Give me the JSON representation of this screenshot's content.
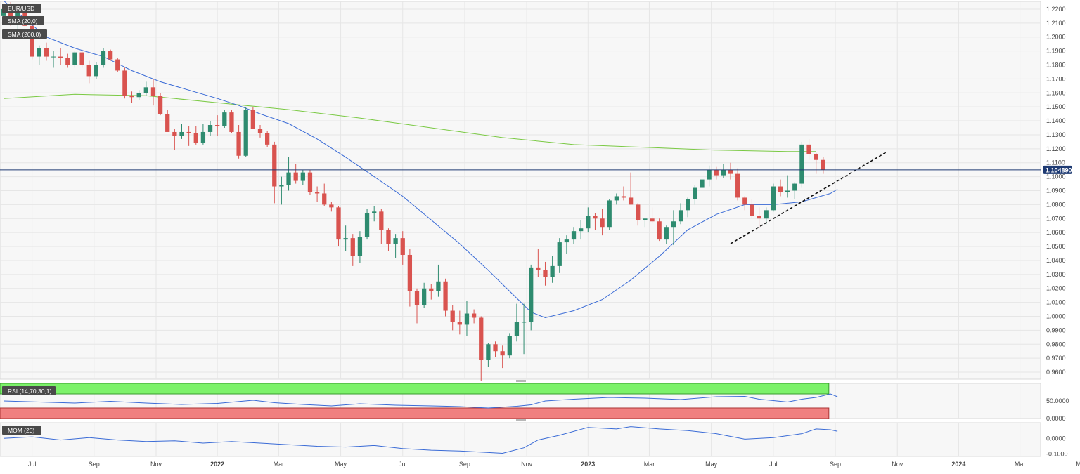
{
  "chart_data": {
    "type": "candlestick",
    "symbol": "EUR/USD",
    "indicators": {
      "sma_fast_label": "SMA (20,0)",
      "sma_slow_label": "SMA (200,0)",
      "rsi_label": "RSI (14,70,30,1)",
      "mom_label": "MOM (20)"
    },
    "last_price_label": "1.104890",
    "last_price": 1.10489,
    "main_ylim": [
      0.955,
      1.2255
    ],
    "y_ticks": [
      "1.2200",
      "1.2100",
      "1.2000",
      "1.1900",
      "1.1800",
      "1.1700",
      "1.1600",
      "1.1500",
      "1.1400",
      "1.1300",
      "1.1200",
      "1.1100",
      "1.1000",
      "1.0900",
      "1.0800",
      "1.0700",
      "1.0600",
      "1.0500",
      "1.0400",
      "1.0300",
      "1.0200",
      "1.0100",
      "1.0000",
      "0.9900",
      "0.9800",
      "0.9700",
      "0.9600"
    ],
    "x_ticks": [
      "Jul",
      "Sep",
      "Nov",
      "2022",
      "Mar",
      "May",
      "Jul",
      "Sep",
      "Nov",
      "2023",
      "Mar",
      "May",
      "Jul",
      "Sep",
      "Nov",
      "2024",
      "Mar",
      "May"
    ],
    "week_count": 146,
    "x_tick_weeks": [
      4,
      12.7,
      21.4,
      30,
      38.6,
      47.3,
      56,
      64.7,
      73.4,
      82,
      90.6,
      99.3,
      108,
      116.7,
      125.4,
      134,
      142.6,
      151.3
    ],
    "candles": [
      [
        1.215,
        1.223,
        1.212,
        1.22
      ],
      [
        1.22,
        1.225,
        1.208,
        1.211
      ],
      [
        1.211,
        1.223,
        1.204,
        1.219
      ],
      [
        1.219,
        1.22,
        1.205,
        1.208
      ],
      [
        1.208,
        1.211,
        1.184,
        1.186
      ],
      [
        1.186,
        1.194,
        1.18,
        1.192
      ],
      [
        1.192,
        1.196,
        1.183,
        1.186
      ],
      [
        1.186,
        1.19,
        1.178,
        1.186
      ],
      [
        1.186,
        1.192,
        1.18,
        1.185
      ],
      [
        1.185,
        1.188,
        1.178,
        1.18
      ],
      [
        1.18,
        1.19,
        1.178,
        1.189
      ],
      [
        1.189,
        1.191,
        1.178,
        1.18
      ],
      [
        1.18,
        1.183,
        1.167,
        1.172
      ],
      [
        1.172,
        1.182,
        1.17,
        1.18
      ],
      [
        1.18,
        1.192,
        1.178,
        1.19
      ],
      [
        1.19,
        1.191,
        1.183,
        1.184
      ],
      [
        1.184,
        1.185,
        1.175,
        1.176
      ],
      [
        1.176,
        1.178,
        1.156,
        1.158
      ],
      [
        1.158,
        1.161,
        1.153,
        1.157
      ],
      [
        1.157,
        1.162,
        1.155,
        1.16
      ],
      [
        1.16,
        1.168,
        1.158,
        1.164
      ],
      [
        1.164,
        1.17,
        1.151,
        1.158
      ],
      [
        1.158,
        1.16,
        1.144,
        1.145
      ],
      [
        1.145,
        1.148,
        1.133,
        1.132
      ],
      [
        1.132,
        1.134,
        1.119,
        1.129
      ],
      [
        1.129,
        1.138,
        1.127,
        1.132
      ],
      [
        1.132,
        1.136,
        1.122,
        1.131
      ],
      [
        1.131,
        1.136,
        1.123,
        1.124
      ],
      [
        1.124,
        1.138,
        1.123,
        1.132
      ],
      [
        1.132,
        1.14,
        1.129,
        1.137
      ],
      [
        1.137,
        1.144,
        1.129,
        1.136
      ],
      [
        1.136,
        1.148,
        1.135,
        1.146
      ],
      [
        1.146,
        1.148,
        1.131,
        1.132
      ],
      [
        1.132,
        1.137,
        1.113,
        1.115
      ],
      [
        1.115,
        1.15,
        1.114,
        1.148
      ],
      [
        1.148,
        1.15,
        1.134,
        1.134
      ],
      [
        1.134,
        1.137,
        1.128,
        1.131
      ],
      [
        1.131,
        1.133,
        1.121,
        1.123
      ],
      [
        1.123,
        1.125,
        1.081,
        1.093
      ],
      [
        1.093,
        1.1,
        1.08,
        1.094
      ],
      [
        1.094,
        1.114,
        1.09,
        1.103
      ],
      [
        1.103,
        1.109,
        1.095,
        1.097
      ],
      [
        1.097,
        1.105,
        1.094,
        1.103
      ],
      [
        1.103,
        1.105,
        1.087,
        1.089
      ],
      [
        1.089,
        1.093,
        1.082,
        1.088
      ],
      [
        1.088,
        1.095,
        1.079,
        1.08
      ],
      [
        1.08,
        1.082,
        1.075,
        1.078
      ],
      [
        1.078,
        1.079,
        1.05,
        1.055
      ],
      [
        1.055,
        1.065,
        1.047,
        1.056
      ],
      [
        1.056,
        1.059,
        1.036,
        1.043
      ],
      [
        1.043,
        1.061,
        1.038,
        1.057
      ],
      [
        1.057,
        1.077,
        1.055,
        1.074
      ],
      [
        1.074,
        1.079,
        1.068,
        1.075
      ],
      [
        1.075,
        1.077,
        1.052,
        1.062
      ],
      [
        1.062,
        1.063,
        1.047,
        1.052
      ],
      [
        1.052,
        1.059,
        1.042,
        1.056
      ],
      [
        1.056,
        1.061,
        1.037,
        1.044
      ],
      [
        1.044,
        1.048,
        1.007,
        1.018
      ],
      [
        1.018,
        1.02,
        0.995,
        1.008
      ],
      [
        1.008,
        1.024,
        1.006,
        1.02
      ],
      [
        1.02,
        1.023,
        1.012,
        1.018
      ],
      [
        1.018,
        1.037,
        1.014,
        1.025
      ],
      [
        1.025,
        1.027,
        1.0,
        1.004
      ],
      [
        1.004,
        1.008,
        0.99,
        0.996
      ],
      [
        0.996,
        1.004,
        0.987,
        0.994
      ],
      [
        0.994,
        1.011,
        0.986,
        1.002
      ],
      [
        1.002,
        1.005,
        0.995,
        0.999
      ],
      [
        0.999,
        1.0,
        0.954,
        0.969
      ],
      [
        0.969,
        0.981,
        0.964,
        0.98
      ],
      [
        0.98,
        0.982,
        0.971,
        0.975
      ],
      [
        0.975,
        0.979,
        0.963,
        0.972
      ],
      [
        0.972,
        0.988,
        0.97,
        0.986
      ],
      [
        0.986,
        1.009,
        0.982,
        0.996
      ],
      [
        0.996,
        1.009,
        0.973,
        0.996
      ],
      [
        0.996,
        1.037,
        0.99,
        1.035
      ],
      [
        1.035,
        1.048,
        1.028,
        1.033
      ],
      [
        1.033,
        1.039,
        1.022,
        1.028
      ],
      [
        1.028,
        1.043,
        1.024,
        1.036
      ],
      [
        1.036,
        1.056,
        1.031,
        1.053
      ],
      [
        1.053,
        1.058,
        1.045,
        1.055
      ],
      [
        1.055,
        1.064,
        1.052,
        1.061
      ],
      [
        1.061,
        1.069,
        1.055,
        1.063
      ],
      [
        1.063,
        1.078,
        1.06,
        1.072
      ],
      [
        1.072,
        1.074,
        1.062,
        1.07
      ],
      [
        1.07,
        1.077,
        1.058,
        1.064
      ],
      [
        1.064,
        1.084,
        1.062,
        1.083
      ],
      [
        1.083,
        1.088,
        1.08,
        1.086
      ],
      [
        1.086,
        1.093,
        1.083,
        1.085
      ],
      [
        1.085,
        1.103,
        1.08,
        1.08
      ],
      [
        1.08,
        1.081,
        1.065,
        1.069
      ],
      [
        1.069,
        1.07,
        1.064,
        1.07
      ],
      [
        1.07,
        1.078,
        1.067,
        1.068
      ],
      [
        1.068,
        1.07,
        1.054,
        1.055
      ],
      [
        1.055,
        1.065,
        1.052,
        1.064
      ],
      [
        1.064,
        1.076,
        1.051,
        1.068
      ],
      [
        1.068,
        1.081,
        1.066,
        1.076
      ],
      [
        1.076,
        1.085,
        1.071,
        1.084
      ],
      [
        1.084,
        1.094,
        1.08,
        1.092
      ],
      [
        1.092,
        1.099,
        1.086,
        1.098
      ],
      [
        1.098,
        1.108,
        1.093,
        1.105
      ],
      [
        1.105,
        1.107,
        1.098,
        1.101
      ],
      [
        1.101,
        1.109,
        1.099,
        1.105
      ],
      [
        1.105,
        1.11,
        1.098,
        1.102
      ],
      [
        1.102,
        1.106,
        1.083,
        1.085
      ],
      [
        1.085,
        1.086,
        1.076,
        1.08
      ],
      [
        1.08,
        1.084,
        1.07,
        1.072
      ],
      [
        1.072,
        1.078,
        1.063,
        1.07
      ],
      [
        1.07,
        1.078,
        1.066,
        1.076
      ],
      [
        1.076,
        1.095,
        1.075,
        1.093
      ],
      [
        1.093,
        1.098,
        1.086,
        1.089
      ],
      [
        1.089,
        1.101,
        1.085,
        1.09
      ],
      [
        1.09,
        1.096,
        1.084,
        1.095
      ],
      [
        1.095,
        1.125,
        1.092,
        1.123
      ],
      [
        1.123,
        1.127,
        1.112,
        1.116
      ],
      [
        1.116,
        1.117,
        1.102,
        1.112
      ],
      [
        1.112,
        1.114,
        1.102,
        1.105
      ]
    ],
    "sma20": [
      [
        0,
        1.226
      ],
      [
        6,
        1.2
      ],
      [
        10,
        1.192
      ],
      [
        14,
        1.186
      ],
      [
        18,
        1.176
      ],
      [
        22,
        1.168
      ],
      [
        26,
        1.162
      ],
      [
        30,
        1.156
      ],
      [
        33,
        1.151
      ],
      [
        36,
        1.145
      ],
      [
        40,
        1.138
      ],
      [
        44,
        1.127
      ],
      [
        48,
        1.114
      ],
      [
        52,
        1.1
      ],
      [
        56,
        1.086
      ],
      [
        60,
        1.069
      ],
      [
        64,
        1.052
      ],
      [
        68,
        1.033
      ],
      [
        72,
        1.013
      ],
      [
        74,
        1.003
      ],
      [
        76,
        0.999
      ],
      [
        80,
        1.004
      ],
      [
        84,
        1.012
      ],
      [
        88,
        1.026
      ],
      [
        92,
        1.043
      ],
      [
        96,
        1.062
      ],
      [
        100,
        1.073
      ],
      [
        104,
        1.08
      ],
      [
        108,
        1.08
      ],
      [
        112,
        1.082
      ],
      [
        114,
        1.085
      ],
      [
        116,
        1.088
      ],
      [
        117,
        1.091
      ]
    ],
    "sma200": [
      [
        0,
        1.156
      ],
      [
        10,
        1.159
      ],
      [
        20,
        1.158
      ],
      [
        30,
        1.153
      ],
      [
        40,
        1.148
      ],
      [
        50,
        1.142
      ],
      [
        60,
        1.135
      ],
      [
        70,
        1.128
      ],
      [
        80,
        1.123
      ],
      [
        90,
        1.121
      ],
      [
        100,
        1.119
      ],
      [
        110,
        1.118
      ],
      [
        114,
        1.118
      ]
    ],
    "trendline": [
      [
        102,
        1.052
      ],
      [
        124,
        1.118
      ]
    ],
    "rsi": [
      [
        0,
        50
      ],
      [
        5,
        47
      ],
      [
        10,
        44
      ],
      [
        15,
        49
      ],
      [
        20,
        44
      ],
      [
        25,
        40
      ],
      [
        30,
        43
      ],
      [
        35,
        52
      ],
      [
        38,
        45
      ],
      [
        42,
        40
      ],
      [
        46,
        36
      ],
      [
        50,
        42
      ],
      [
        55,
        38
      ],
      [
        60,
        36
      ],
      [
        64,
        34
      ],
      [
        68,
        30
      ],
      [
        72,
        35
      ],
      [
        74,
        39
      ],
      [
        76,
        50
      ],
      [
        80,
        55
      ],
      [
        85,
        60
      ],
      [
        90,
        58
      ],
      [
        95,
        54
      ],
      [
        100,
        62
      ],
      [
        104,
        63
      ],
      [
        106,
        55
      ],
      [
        110,
        47
      ],
      [
        112,
        55
      ],
      [
        114,
        60
      ],
      [
        116,
        70
      ],
      [
        117,
        62
      ]
    ],
    "rsi_levels": {
      "upper": 70,
      "lower": 30
    },
    "rsi_ticks": [
      "50.0000",
      "0.0000"
    ],
    "mom": [
      [
        0,
        0.0
      ],
      [
        4,
        0.01
      ],
      [
        8,
        -0.01
      ],
      [
        12,
        0.005
      ],
      [
        16,
        -0.01
      ],
      [
        20,
        -0.02
      ],
      [
        24,
        -0.015
      ],
      [
        28,
        -0.03
      ],
      [
        32,
        -0.02
      ],
      [
        36,
        -0.03
      ],
      [
        40,
        -0.04
      ],
      [
        44,
        -0.05
      ],
      [
        48,
        -0.055
      ],
      [
        52,
        -0.045
      ],
      [
        56,
        -0.065
      ],
      [
        60,
        -0.075
      ],
      [
        64,
        -0.08
      ],
      [
        68,
        -0.09
      ],
      [
        70,
        -0.095
      ],
      [
        73,
        -0.06
      ],
      [
        75,
        -0.01
      ],
      [
        78,
        0.02
      ],
      [
        82,
        0.07
      ],
      [
        86,
        0.06
      ],
      [
        88,
        0.075
      ],
      [
        92,
        0.06
      ],
      [
        96,
        0.05
      ],
      [
        100,
        0.03
      ],
      [
        104,
        -0.005
      ],
      [
        108,
        0.005
      ],
      [
        112,
        0.03
      ],
      [
        114,
        0.06
      ],
      [
        116,
        0.055
      ],
      [
        117,
        0.045
      ]
    ],
    "mom_ylim": [
      -0.115,
      0.1
    ],
    "mom_ticks": [
      "0.0000",
      "-0.1000"
    ]
  }
}
